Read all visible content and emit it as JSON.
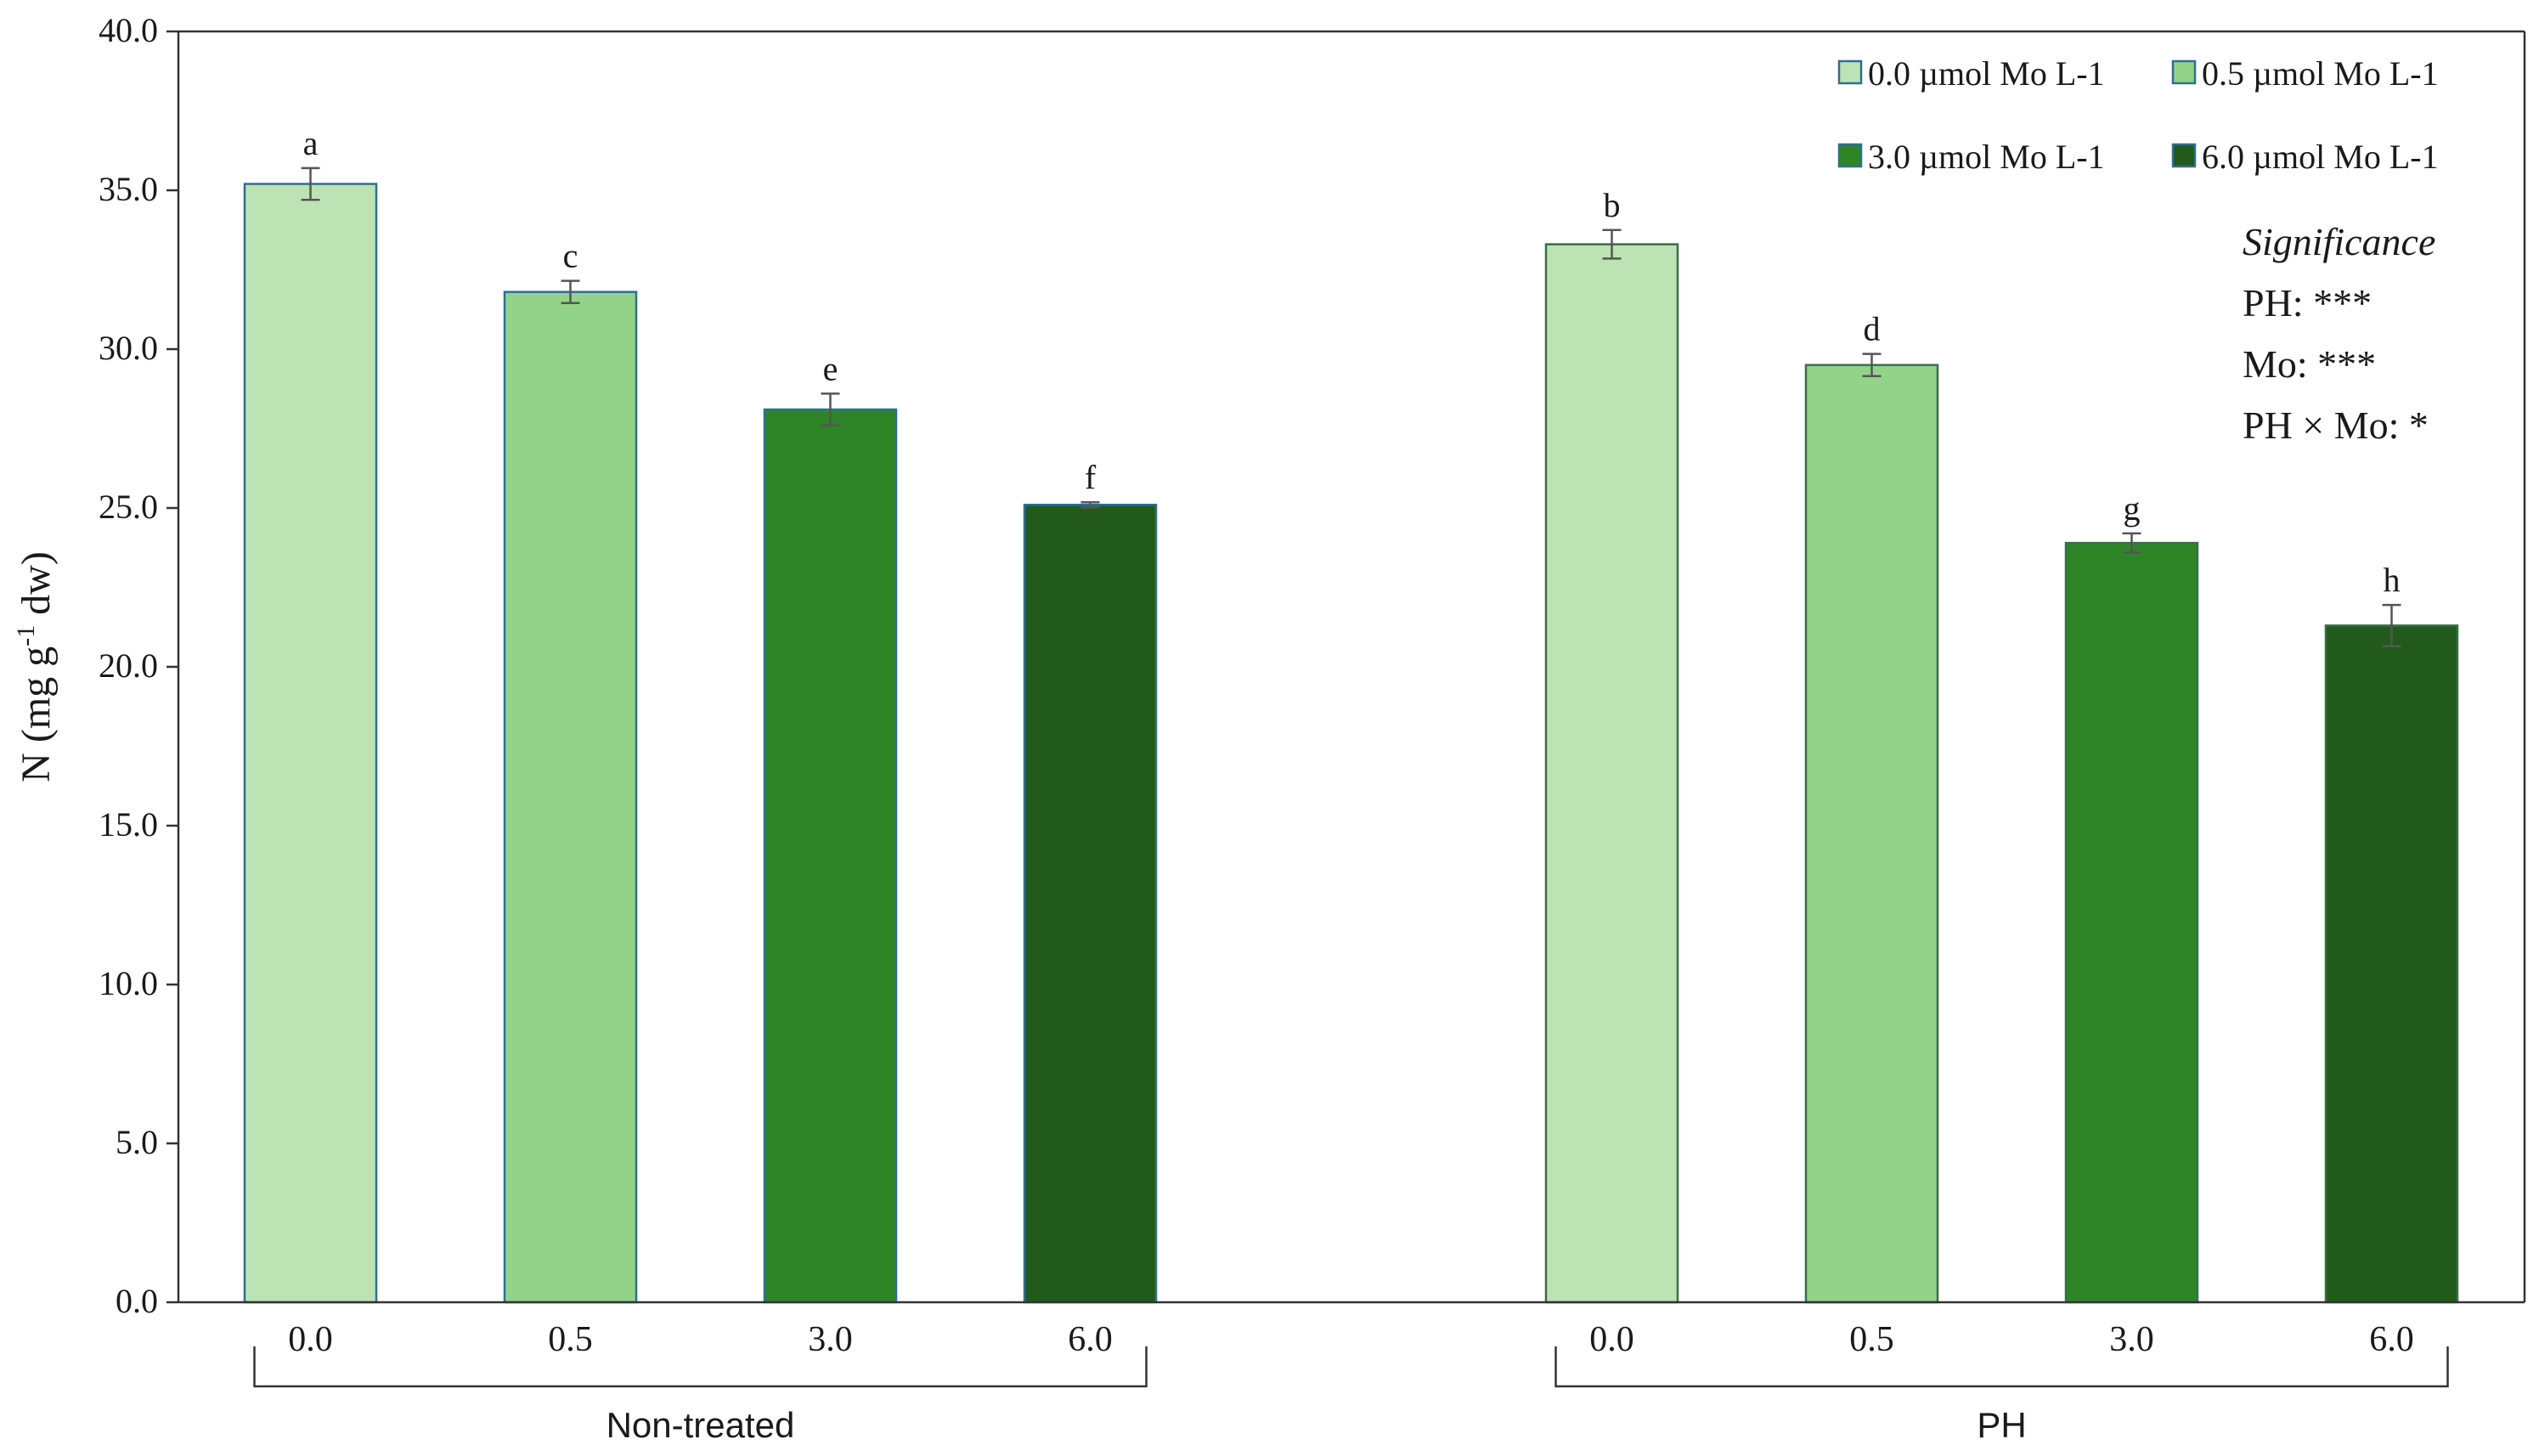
{
  "chart_data": {
    "type": "bar",
    "ylabel_main": "N (mg g",
    "ylabel_sup": "-1",
    "ylabel_end": " dw)",
    "ylim": [
      0,
      40
    ],
    "y_ticks": [
      "0.0",
      "5.0",
      "10.0",
      "15.0",
      "20.0",
      "25.0",
      "30.0",
      "35.0",
      "40.0"
    ],
    "groups": [
      {
        "name": "Non-treated",
        "categories": [
          "0.0",
          "0.5",
          "3.0",
          "6.0"
        ],
        "values": [
          35.2,
          31.8,
          28.1,
          25.1
        ],
        "errors": [
          0.5,
          0.35,
          0.5,
          0.08
        ],
        "letters": [
          "a",
          "c",
          "e",
          "f"
        ]
      },
      {
        "name": "PH",
        "categories": [
          "0.0",
          "0.5",
          "3.0",
          "6.0"
        ],
        "values": [
          33.3,
          29.5,
          23.9,
          21.3
        ],
        "errors": [
          0.45,
          0.35,
          0.3,
          0.65
        ],
        "letters": [
          "b",
          "d",
          "g",
          "h"
        ]
      }
    ],
    "series": [
      {
        "name": "0.0 µmol Mo L-1",
        "color": "#bde3b5"
      },
      {
        "name": "0.5 µmol Mo L-1",
        "color": "#93d389"
      },
      {
        "name": "3.0 µmol Mo L-1",
        "color": "#2e8528"
      },
      {
        "name": "6.0 µmol Mo L-1",
        "color": "#215a1a"
      }
    ],
    "bar_stroke_colors": [
      "#2f6e93",
      "#3a6e4a"
    ],
    "legend_position": "top-right",
    "grid": false,
    "significance": {
      "title": "Significance",
      "lines": [
        "PH: ***",
        "Mo: ***",
        "PH × Mo: *"
      ]
    }
  }
}
